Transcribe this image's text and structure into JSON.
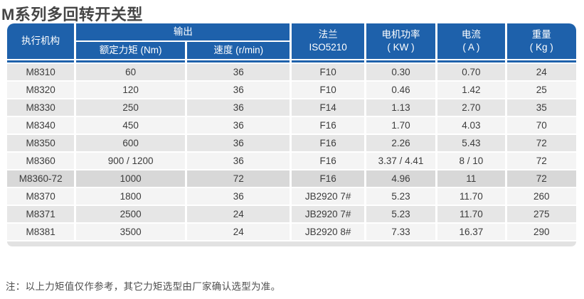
{
  "page": {
    "title": "M系列多回转开关型",
    "note": "注：以上力矩值仅作参考，其它力矩选型由厂家确认选型为准。"
  },
  "colors": {
    "header_blue": "#1e61ab",
    "row_gray": "#e6e6e6",
    "row_light": "#f4f4f4",
    "row_highlight": "#d8d8d8",
    "title_color": "#454545"
  },
  "table": {
    "headers": {
      "actuator": "执行机构",
      "output_group": "输出",
      "torque": "额定力矩 (Nm)",
      "speed": "速度 (r/min)",
      "flange_line1": "法兰",
      "flange_line2": "ISO5210",
      "power_line1": "电机功率",
      "power_line2": "( KW )",
      "current_line1": "电流",
      "current_line2": "( A )",
      "weight_line1": "重量",
      "weight_line2": "( Kg )"
    },
    "highlight_row_index": 6,
    "rows": [
      {
        "model": "M8310",
        "torque": "60",
        "speed": "36",
        "flange": "F10",
        "power": "0.30",
        "current": "0.70",
        "weight": "24"
      },
      {
        "model": "M8320",
        "torque": "120",
        "speed": "36",
        "flange": "F10",
        "power": "0.46",
        "current": "1.42",
        "weight": "25"
      },
      {
        "model": "M8330",
        "torque": "250",
        "speed": "36",
        "flange": "F14",
        "power": "1.13",
        "current": "2.70",
        "weight": "35"
      },
      {
        "model": "M8340",
        "torque": "450",
        "speed": "36",
        "flange": "F16",
        "power": "1.70",
        "current": "4.03",
        "weight": "70"
      },
      {
        "model": "M8350",
        "torque": "600",
        "speed": "36",
        "flange": "F16",
        "power": "2.26",
        "current": "5.43",
        "weight": "72"
      },
      {
        "model": "M8360",
        "torque": "900 / 1200",
        "speed": "36",
        "flange": "F16",
        "power": "3.37 / 4.41",
        "current": "8 / 10",
        "weight": "72"
      },
      {
        "model": "M8360-72",
        "torque": "1000",
        "speed": "72",
        "flange": "F16",
        "power": "4.96",
        "current": "11",
        "weight": "72"
      },
      {
        "model": "M8370",
        "torque": "1800",
        "speed": "36",
        "flange": "JB2920 7#",
        "power": "5.23",
        "current": "11.70",
        "weight": "260"
      },
      {
        "model": "M8371",
        "torque": "2500",
        "speed": "24",
        "flange": "JB2920 7#",
        "power": "5.23",
        "current": "11.70",
        "weight": "275"
      },
      {
        "model": "M8381",
        "torque": "3500",
        "speed": "24",
        "flange": "JB2920 8#",
        "power": "7.33",
        "current": "16.37",
        "weight": "290"
      }
    ]
  }
}
